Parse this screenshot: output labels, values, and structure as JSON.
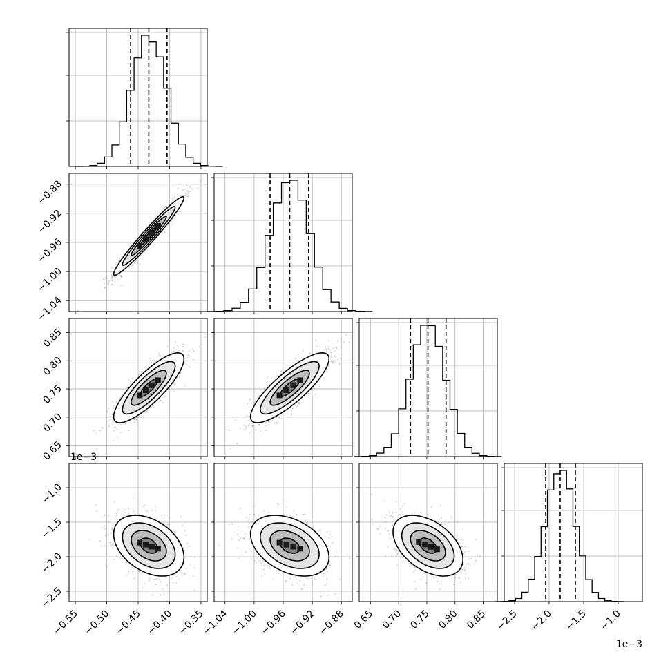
{
  "chart_data": {
    "type": "corner",
    "n_params": 4,
    "offset_text": "1e−3",
    "colors": {
      "line": "#000000",
      "grid": "#b0b0b0",
      "points": "#808080"
    },
    "grid": true,
    "axes": [
      {
        "range": [
          -0.56,
          -0.34
        ],
        "ticks": [
          -0.55,
          -0.5,
          -0.45,
          -0.4,
          -0.35
        ],
        "tick_labels": [
          "−0.55",
          "−0.50",
          "−0.45",
          "−0.40",
          "−0.35"
        ]
      },
      {
        "range": [
          -1.055,
          -0.865
        ],
        "ticks": [
          -1.04,
          -1.0,
          -0.96,
          -0.92,
          -0.88
        ],
        "tick_labels": [
          "−1.04",
          "−1.00",
          "−0.96",
          "−0.92",
          "−0.88"
        ]
      },
      {
        "range": [
          0.63,
          0.875
        ],
        "ticks": [
          0.65,
          0.7,
          0.75,
          0.8,
          0.85
        ],
        "tick_labels": [
          "0.65",
          "0.70",
          "0.75",
          "0.80",
          "0.85"
        ]
      },
      {
        "range": [
          -2.65,
          -0.65
        ],
        "ticks": [
          -2.5,
          -2.0,
          -1.5,
          -1.0
        ],
        "tick_labels": [
          "−2.5",
          "−2.0",
          "−1.5",
          "−1.0"
        ]
      }
    ],
    "params": [
      {
        "mean": -0.433,
        "std": 0.028,
        "quantiles": [
          -0.462,
          -0.433,
          -0.404
        ]
      },
      {
        "mean": -0.951,
        "std": 0.027,
        "quantiles": [
          -0.978,
          -0.951,
          -0.925
        ]
      },
      {
        "mean": 0.752,
        "std": 0.031,
        "quantiles": [
          0.721,
          0.752,
          0.784
        ]
      },
      {
        "mean": -1.84,
        "std": 0.22,
        "quantiles": [
          -2.05,
          -1.84,
          -1.62
        ]
      }
    ],
    "correlations": [
      [
        1.0,
        0.97,
        0.83,
        -0.38
      ],
      [
        0.97,
        1.0,
        0.83,
        -0.38
      ],
      [
        0.83,
        0.83,
        1.0,
        -0.45
      ],
      [
        -0.38,
        -0.38,
        -0.45,
        1.0
      ]
    ],
    "hist_bins": 20,
    "contour_levels_sigma": [
      0.5,
      1.0,
      1.5,
      2.0
    ]
  }
}
